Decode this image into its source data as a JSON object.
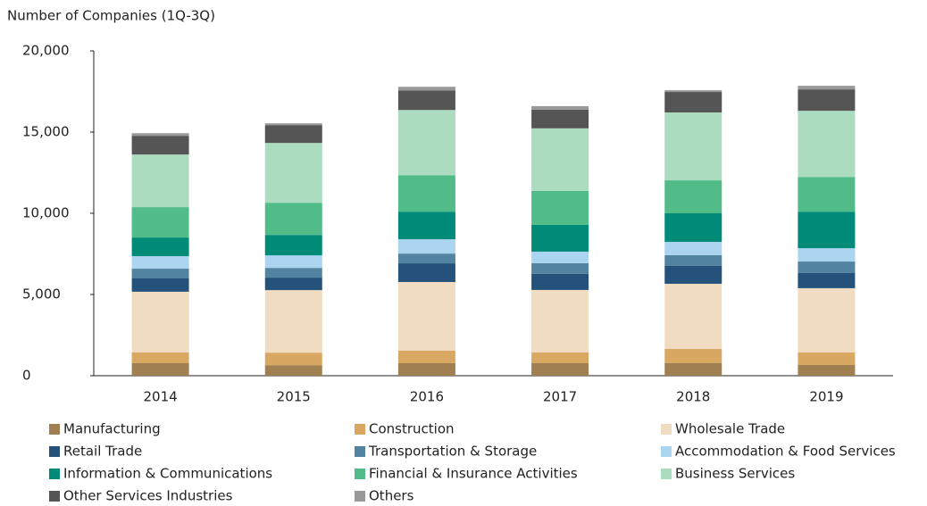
{
  "chart_data": {
    "type": "stacked_bar",
    "title": "Number of Companies (1Q-3Q)",
    "categories": [
      "2014",
      "2015",
      "2016",
      "2017",
      "2018",
      "2019"
    ],
    "series": [
      {
        "name": "Manufacturing",
        "color": "#a08050",
        "values": [
          770,
          650,
          770,
          770,
          770,
          660
        ]
      },
      {
        "name": "Construction",
        "color": "#d8a862",
        "values": [
          660,
          770,
          770,
          660,
          880,
          770
        ]
      },
      {
        "name": "Wholesale Trade",
        "color": "#f0dcc0",
        "values": [
          3740,
          3850,
          4230,
          3850,
          4010,
          3960
        ]
      },
      {
        "name": "Retail Trade",
        "color": "#24527a",
        "values": [
          820,
          770,
          1150,
          990,
          1100,
          930
        ]
      },
      {
        "name": "Transportation & Storage",
        "color": "#5283a0",
        "values": [
          600,
          600,
          600,
          660,
          660,
          710
        ]
      },
      {
        "name": "Accommodation & Food Services",
        "color": "#aad4f0",
        "values": [
          770,
          770,
          880,
          710,
          820,
          820
        ]
      },
      {
        "name": "Information & Communications",
        "color": "#008a78",
        "values": [
          1150,
          1260,
          1700,
          1650,
          1760,
          2250
        ]
      },
      {
        "name": "Financial & Insurance Activities",
        "color": "#52bc88",
        "values": [
          1870,
          1980,
          2250,
          2090,
          2030,
          2140
        ]
      },
      {
        "name": "Business Services",
        "color": "#acdcc0",
        "values": [
          3240,
          3680,
          4010,
          3850,
          4180,
          4070
        ]
      },
      {
        "name": "Other Services Industries",
        "color": "#555555",
        "values": [
          1150,
          1100,
          1210,
          1150,
          1260,
          1320
        ]
      },
      {
        "name": "Others",
        "color": "#999999",
        "values": [
          160,
          110,
          220,
          220,
          110,
          220
        ]
      }
    ],
    "ylim": [
      0,
      20000
    ],
    "yticks": [
      0,
      {
        "value": 5000,
        "label": "5,000"
      },
      {
        "value": 10000,
        "label": "10,000"
      },
      {
        "value": 15000,
        "label": "15,000"
      },
      {
        "value": 20000,
        "label": "20,000"
      }
    ],
    "grid": false
  }
}
